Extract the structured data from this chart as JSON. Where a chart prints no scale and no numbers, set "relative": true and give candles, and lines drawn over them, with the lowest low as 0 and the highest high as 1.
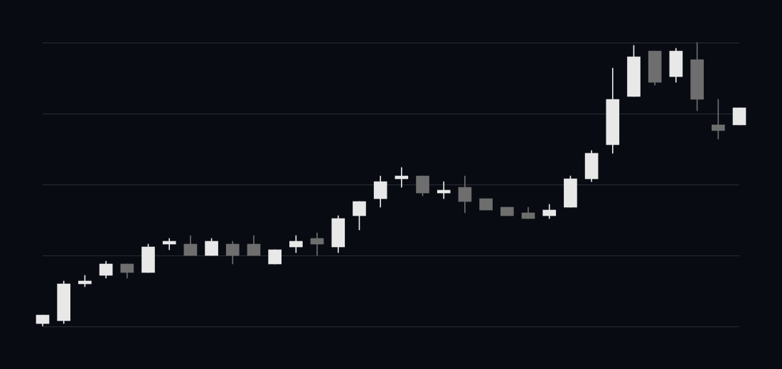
{
  "chart_data": {
    "type": "candlestick",
    "relative": true,
    "grid": "y",
    "tick_labels": false,
    "categories": [
      null,
      null,
      null,
      null,
      null,
      null,
      null,
      null,
      null,
      null,
      null,
      null,
      null,
      null,
      null,
      null,
      null,
      null,
      null,
      null,
      null,
      null,
      null,
      null,
      null,
      null,
      null,
      null,
      null,
      null,
      null,
      null,
      null,
      null
    ],
    "ohlc": [
      [
        0.01,
        0.04,
        0,
        0.04
      ],
      [
        0.02,
        0.16,
        0.01,
        0.15
      ],
      [
        0.15,
        0.18,
        0.14,
        0.16
      ],
      [
        0.18,
        0.23,
        0.17,
        0.22
      ],
      [
        0.22,
        0.22,
        0.17,
        0.19
      ],
      [
        0.19,
        0.29,
        0.19,
        0.28
      ],
      [
        0.29,
        0.31,
        0.27,
        0.3
      ],
      [
        0.29,
        0.32,
        0.25,
        0.25
      ],
      [
        0.25,
        0.31,
        0.25,
        0.3
      ],
      [
        0.29,
        0.3,
        0.22,
        0.25
      ],
      [
        0.29,
        0.32,
        0.25,
        0.25
      ],
      [
        0.22,
        0.27,
        0.22,
        0.27
      ],
      [
        0.28,
        0.32,
        0.26,
        0.3
      ],
      [
        0.31,
        0.33,
        0.25,
        0.29
      ],
      [
        0.28,
        0.39,
        0.26,
        0.38
      ],
      [
        0.39,
        0.44,
        0.34,
        0.44
      ],
      [
        0.45,
        0.53,
        0.42,
        0.51
      ],
      [
        0.52,
        0.56,
        0.49,
        0.53
      ],
      [
        0.53,
        0.53,
        0.46,
        0.47
      ],
      [
        0.47,
        0.51,
        0.45,
        0.48
      ],
      [
        0.49,
        0.53,
        0.4,
        0.44
      ],
      [
        0.45,
        0.45,
        0.41,
        0.41
      ],
      [
        0.42,
        0.42,
        0.39,
        0.39
      ],
      [
        0.4,
        0.42,
        0.38,
        0.38
      ],
      [
        0.39,
        0.43,
        0.38,
        0.41
      ],
      [
        0.42,
        0.53,
        0.42,
        0.52
      ],
      [
        0.52,
        0.62,
        0.51,
        0.61
      ],
      [
        0.64,
        0.91,
        0.61,
        0.8
      ],
      [
        0.81,
        0.99,
        0.81,
        0.95
      ],
      [
        0.97,
        0.97,
        0.85,
        0.86
      ],
      [
        0.88,
        0.98,
        0.86,
        0.97
      ],
      [
        0.94,
        1,
        0.76,
        0.8
      ],
      [
        0.71,
        0.8,
        0.66,
        0.69
      ],
      [
        0.71,
        0.77,
        0.71,
        0.77
      ]
    ],
    "colors": [
      "#e8e8e8",
      "#e8e8e8",
      "#e8e8e8",
      "#e8e8e8",
      "#6e6e6e",
      "#e8e8e8",
      "#e8e8e8",
      "#6e6e6e",
      "#e8e8e8",
      "#6e6e6e",
      "#6e6e6e",
      "#e8e8e8",
      "#e8e8e8",
      "#6e6e6e",
      "#e8e8e8",
      "#e8e8e8",
      "#e8e8e8",
      "#e8e8e8",
      "#6e6e6e",
      "#e8e8e8",
      "#6e6e6e",
      "#6e6e6e",
      "#6e6e6e",
      "#6e6e6e",
      "#e8e8e8",
      "#e8e8e8",
      "#e8e8e8",
      "#e8e8e8",
      "#e8e8e8",
      "#6e6e6e",
      "#e8e8e8",
      "#6e6e6e",
      "#6e6e6e",
      "#e8e8e8"
    ]
  }
}
